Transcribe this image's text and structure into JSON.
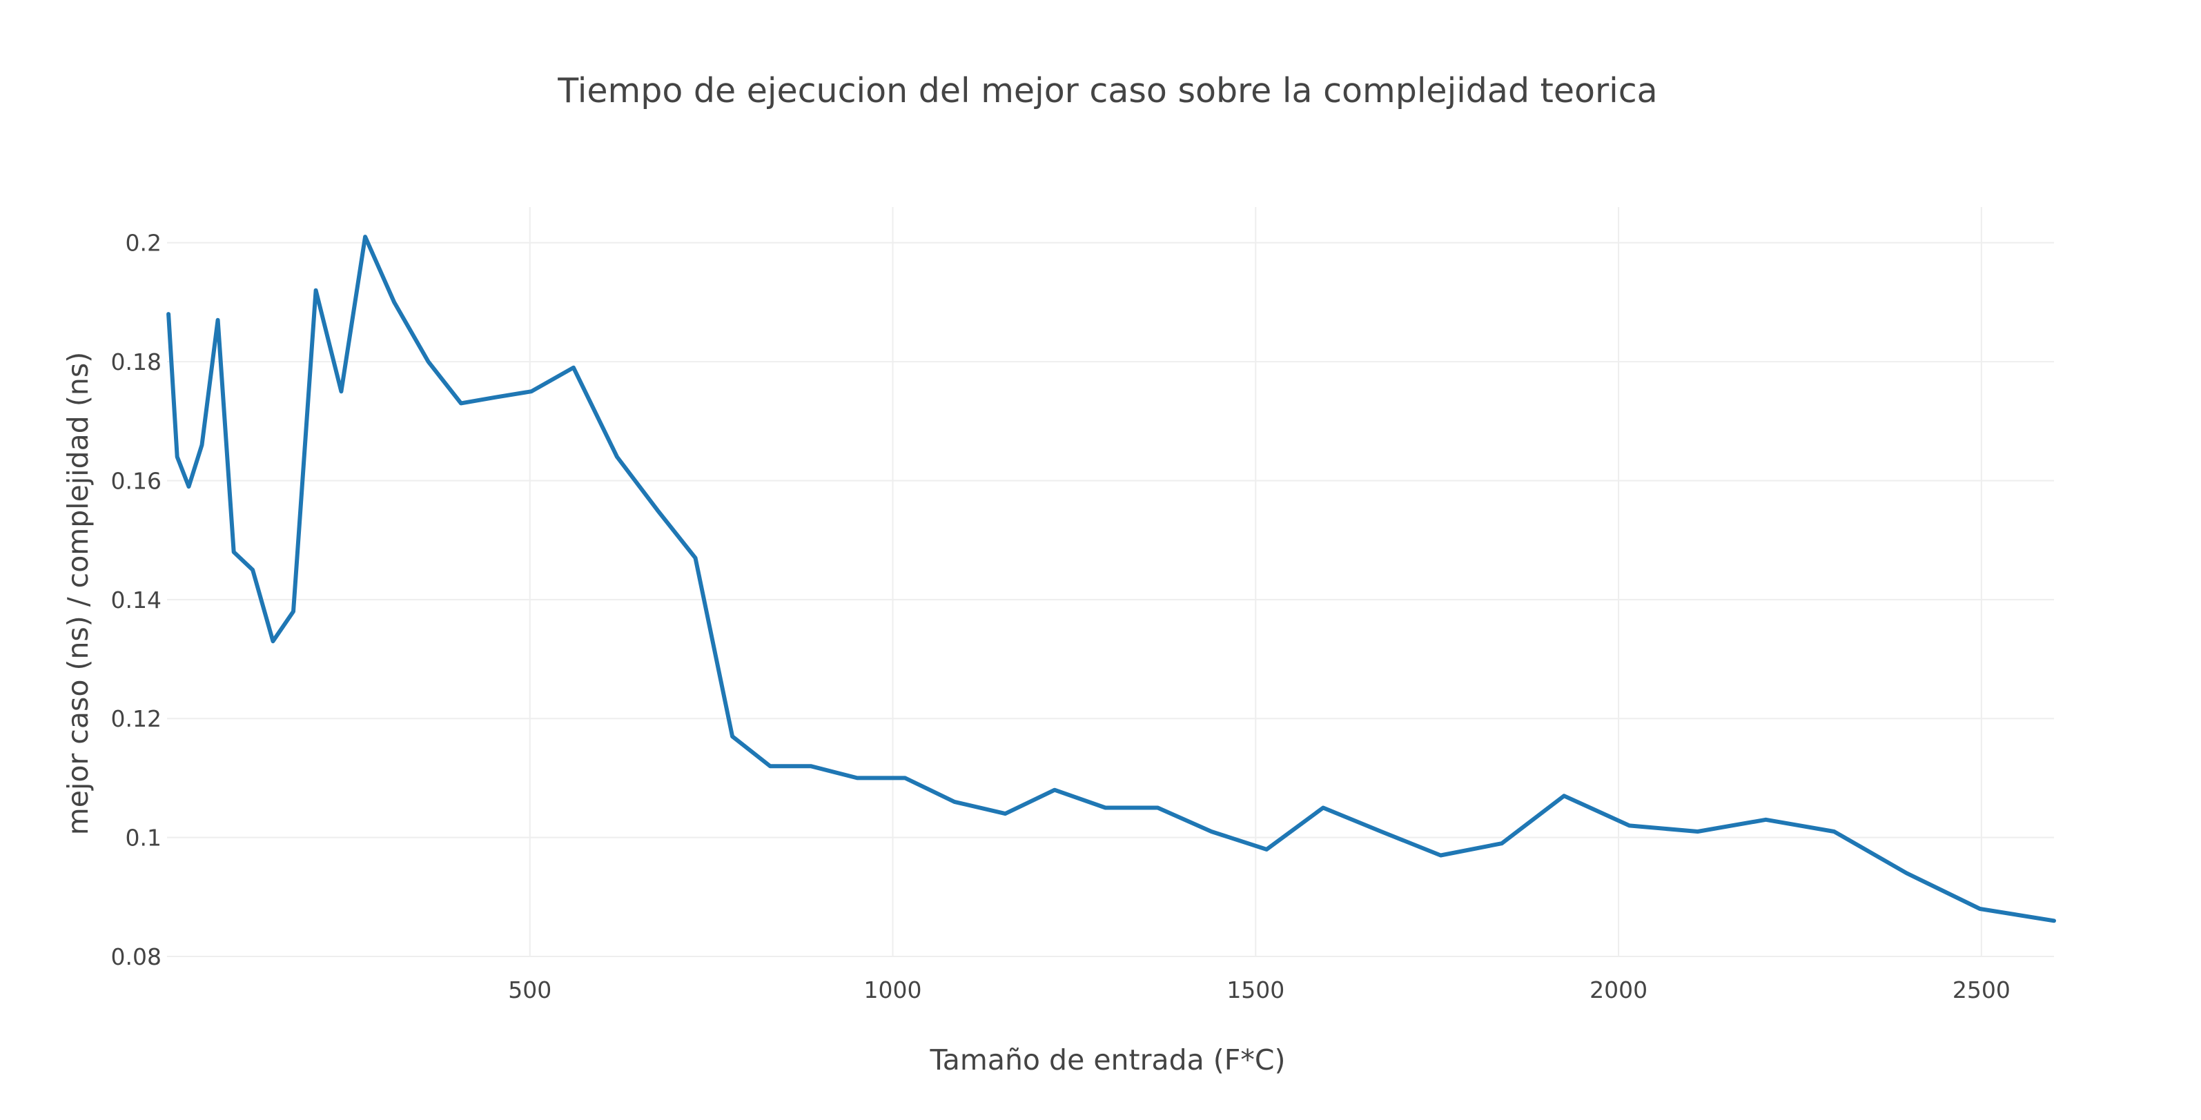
{
  "chart_data": {
    "type": "line",
    "title": "Tiempo de ejecucion del mejor caso sobre  la complejidad teorica",
    "xlabel": "Tamaño de entrada (F*C)",
    "ylabel": "mejor caso (ns) / complejidad (ns)",
    "xlim": [
      0,
      2600
    ],
    "ylim": [
      0.08,
      0.206
    ],
    "x_ticks": [
      500,
      1000,
      1500,
      2000,
      2500
    ],
    "y_ticks": [
      0.08,
      0.1,
      0.12,
      0.14,
      0.16,
      0.18,
      0.2
    ],
    "x_tick_labels": [
      "500",
      "1000",
      "1500",
      "2000",
      "2500"
    ],
    "y_tick_labels": [
      "0.08",
      "0.1",
      "0.12",
      "0.14",
      "0.16",
      "0.18",
      "0.2"
    ],
    "grid": true,
    "legend": "none",
    "series": [
      {
        "color": "#1f77b4",
        "x": [
          2,
          14,
          30,
          48,
          70,
          92,
          118,
          146,
          174,
          205,
          240,
          273,
          313,
          360,
          405,
          452,
          502,
          560,
          620,
          676,
          728,
          779,
          831,
          887,
          951,
          1017,
          1085,
          1155,
          1223,
          1293,
          1365,
          1439,
          1515,
          1593,
          1673,
          1755,
          1839,
          1925,
          2015,
          2109,
          2203,
          2297,
          2397,
          2498,
          2600
        ],
        "y": [
          0.188,
          0.164,
          0.159,
          0.166,
          0.187,
          0.148,
          0.145,
          0.133,
          0.138,
          0.192,
          0.175,
          0.201,
          0.19,
          0.18,
          0.173,
          0.174,
          0.175,
          0.179,
          0.164,
          0.155,
          0.147,
          0.117,
          0.112,
          0.112,
          0.11,
          0.11,
          0.106,
          0.104,
          0.108,
          0.105,
          0.105,
          0.101,
          0.098,
          0.105,
          0.101,
          0.097,
          0.099,
          0.107,
          0.102,
          0.101,
          0.103,
          0.101,
          0.094,
          0.088,
          0.086
        ]
      }
    ]
  }
}
